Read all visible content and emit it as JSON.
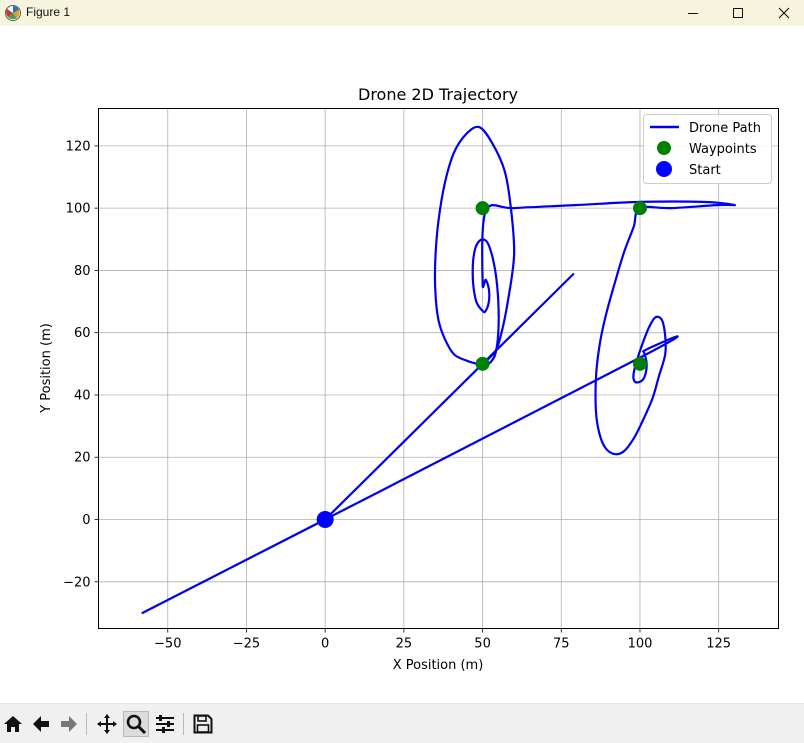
{
  "window": {
    "title": "Figure 1",
    "minimize_icon": "minimize-icon",
    "maximize_icon": "maximize-icon",
    "close_icon": "close-icon"
  },
  "toolbar": {
    "buttons": [
      {
        "name": "home-button",
        "icon": "home-icon"
      },
      {
        "name": "back-button",
        "icon": "arrow-left-icon"
      },
      {
        "name": "forward-button",
        "icon": "arrow-right-icon"
      },
      {
        "name": "pan-button",
        "icon": "move-icon"
      },
      {
        "name": "zoom-button",
        "icon": "magnifier-icon",
        "active": true
      },
      {
        "name": "configure-subplots-button",
        "icon": "sliders-icon"
      },
      {
        "name": "save-button",
        "icon": "floppy-disk-icon"
      }
    ]
  },
  "colors": {
    "path": "#0000ee",
    "waypoint": "#008000",
    "start": "#0000ff",
    "grid": "#b0b0b0"
  },
  "chart_data": {
    "type": "line",
    "title": "Drone 2D Trajectory",
    "xlabel": "X Position (m)",
    "ylabel": "Y Position (m)",
    "xlim": [
      -72,
      144
    ],
    "ylim": [
      -35,
      132
    ],
    "xticks": [
      -50,
      -25,
      0,
      25,
      50,
      75,
      100,
      125
    ],
    "yticks": [
      -20,
      0,
      20,
      40,
      60,
      80,
      100,
      120
    ],
    "xtick_labels": [
      "−50",
      "−25",
      "0",
      "25",
      "50",
      "75",
      "100",
      "125"
    ],
    "ytick_labels": [
      "−20",
      "0",
      "20",
      "40",
      "60",
      "80",
      "100",
      "120"
    ],
    "grid": true,
    "legend_position": "top-right",
    "series": [
      {
        "name": "Drone Path",
        "kind": "line",
        "color": "#0000ee",
        "x": [
          0,
          50,
          54,
          56,
          58,
          60,
          59,
          57,
          53,
          49,
          45,
          41,
          38,
          36,
          35,
          35,
          36,
          38,
          41,
          45,
          48,
          50,
          52,
          54,
          55,
          55,
          54,
          52,
          50,
          48,
          47,
          47,
          48,
          50,
          51,
          52,
          52,
          51,
          50,
          51,
          60,
          80,
          100,
          120,
          130,
          125,
          110,
          100,
          98,
          95,
          92,
          89,
          87,
          86,
          86,
          87,
          89,
          92,
          95,
          98,
          101,
          104,
          106,
          108,
          108,
          107,
          105,
          103,
          101,
          99,
          98,
          98,
          99,
          101,
          102,
          102,
          101,
          100,
          -58,
          0,
          79
        ],
        "y": [
          0,
          50,
          54,
          60,
          70,
          85,
          100,
          112,
          121,
          126,
          124,
          118,
          108,
          96,
          84,
          73,
          64,
          58,
          53,
          51,
          50,
          49,
          50,
          53,
          60,
          70,
          80,
          88,
          90,
          88,
          83,
          76,
          70,
          67,
          67,
          70,
          74,
          77,
          76,
          99,
          100,
          101,
          102,
          102,
          101,
          101,
          100,
          100,
          94,
          86,
          76,
          65,
          55,
          45,
          35,
          28,
          23,
          21,
          22,
          26,
          32,
          39,
          46,
          53,
          59,
          64,
          65,
          62,
          57,
          51,
          47,
          45,
          44,
          45,
          48,
          51,
          54,
          52,
          -30,
          0,
          79
        ]
      },
      {
        "name": "Waypoints",
        "kind": "points",
        "color": "#008000",
        "x": [
          50,
          50,
          100,
          100
        ],
        "y": [
          50,
          100,
          100,
          50
        ]
      },
      {
        "name": "Start",
        "kind": "points",
        "color": "#0000ff",
        "x": [
          0
        ],
        "y": [
          0
        ]
      }
    ]
  }
}
